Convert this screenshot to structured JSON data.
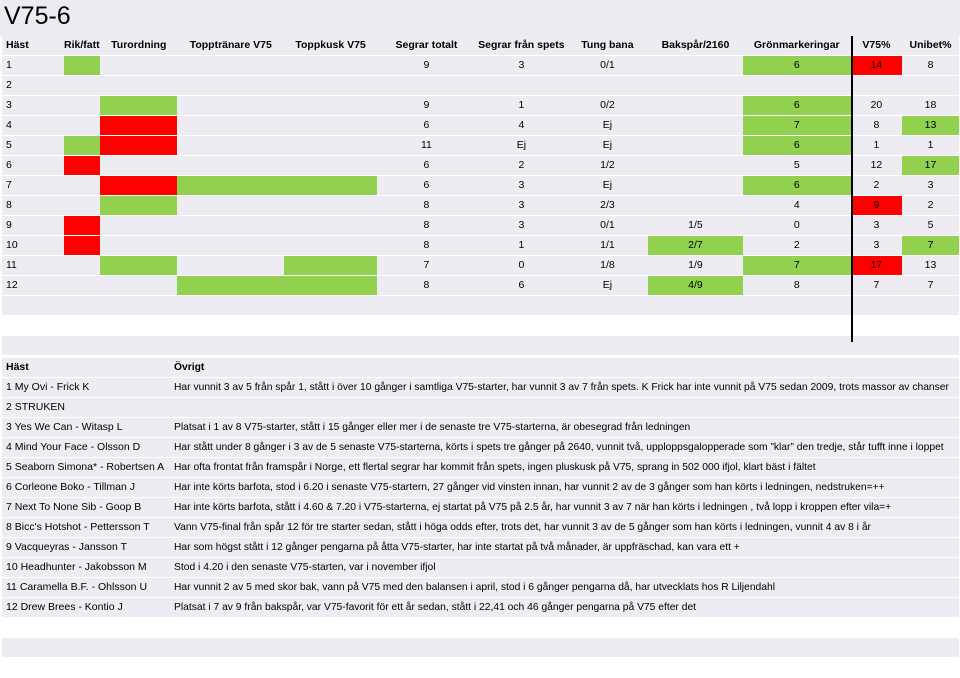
{
  "title": "V75-6",
  "columns": [
    "Häst",
    "Rik/fattig",
    "Turordning",
    "Topptränare V75",
    "Toppkusk V75",
    "Segrar totalt",
    "Segrar från spets",
    "Tung bana",
    "Bakspår/2160",
    "Grönmarkeringar",
    "V75%",
    "Unibet%"
  ],
  "rows": [
    {
      "cells": [
        "1",
        "",
        "",
        "",
        "",
        "9",
        "3",
        "0/1",
        "",
        "6",
        "14",
        "8"
      ],
      "fills": [
        "",
        "g",
        "",
        "",
        "",
        "",
        "",
        "",
        "",
        "g",
        "r",
        ""
      ]
    },
    {
      "cells": [
        "2",
        "",
        "",
        "",
        "",
        "",
        "",
        "",
        "",
        "",
        "",
        ""
      ],
      "fills": [
        "",
        "",
        "",
        "",
        "",
        "",
        "",
        "",
        "",
        "",
        "",
        ""
      ]
    },
    {
      "cells": [
        "3",
        "",
        "",
        "",
        "",
        "9",
        "1",
        "0/2",
        "",
        "6",
        "20",
        "18"
      ],
      "fills": [
        "",
        "",
        "g",
        "",
        "",
        "",
        "",
        "",
        "",
        "g",
        "",
        ""
      ]
    },
    {
      "cells": [
        "4",
        "",
        "",
        "",
        "",
        "6",
        "4",
        "Ej",
        "",
        "7",
        "8",
        "13"
      ],
      "fills": [
        "",
        "",
        "r",
        "",
        "",
        "",
        "",
        "",
        "",
        "g",
        "",
        "g"
      ]
    },
    {
      "cells": [
        "5",
        "",
        "",
        "",
        "",
        "11",
        "Ej",
        "Ej",
        "",
        "6",
        "1",
        "1"
      ],
      "fills": [
        "",
        "g",
        "r",
        "",
        "",
        "",
        "",
        "",
        "",
        "g",
        "",
        ""
      ]
    },
    {
      "cells": [
        "6",
        "",
        "",
        "",
        "",
        "6",
        "2",
        "1/2",
        "",
        "5",
        "12",
        "17"
      ],
      "fills": [
        "",
        "r",
        "",
        "",
        "",
        "",
        "",
        "",
        "",
        "",
        "",
        "g"
      ]
    },
    {
      "cells": [
        "7",
        "",
        "",
        "",
        "",
        "6",
        "3",
        "Ej",
        "",
        "6",
        "2",
        "3"
      ],
      "fills": [
        "",
        "",
        "r",
        "g",
        "g",
        "",
        "",
        "",
        "",
        "g",
        "",
        ""
      ]
    },
    {
      "cells": [
        "8",
        "",
        "",
        "",
        "",
        "8",
        "3",
        "2/3",
        "",
        "4",
        "9",
        "2"
      ],
      "fills": [
        "",
        "",
        "g",
        "",
        "",
        "",
        "",
        "",
        "",
        "",
        "r",
        ""
      ]
    },
    {
      "cells": [
        "9",
        "",
        "",
        "",
        "",
        "8",
        "3",
        "0/1",
        "1/5",
        "0",
        "3",
        "5"
      ],
      "fills": [
        "",
        "r",
        "",
        "",
        "",
        "",
        "",
        "",
        "",
        "",
        "",
        ""
      ]
    },
    {
      "cells": [
        "10",
        "",
        "",
        "",
        "",
        "8",
        "1",
        "1/1",
        "2/7",
        "2",
        "3",
        "7"
      ],
      "fills": [
        "",
        "r",
        "",
        "",
        "",
        "",
        "",
        "",
        "g",
        "",
        "",
        "g"
      ]
    },
    {
      "cells": [
        "11",
        "",
        "",
        "",
        "",
        "7",
        "0",
        "1/8",
        "1/9",
        "7",
        "17",
        "13"
      ],
      "fills": [
        "",
        "",
        "g",
        "",
        "g",
        "",
        "",
        "",
        "",
        "g",
        "r",
        ""
      ]
    },
    {
      "cells": [
        "12",
        "",
        "",
        "",
        "",
        "8",
        "6",
        "Ej",
        "4/9",
        "8",
        "7",
        "7"
      ],
      "fills": [
        "",
        "",
        "",
        "g",
        "g",
        "",
        "",
        "",
        "g",
        "",
        "",
        ""
      ]
    }
  ],
  "notes_header": {
    "name": "Häst",
    "note": "Övrigt"
  },
  "notes": [
    {
      "name": "1 My Ovi - Frick K",
      "note": "Har vunnit 3 av 5 från spår 1, stått i över 10 gånger i samtliga V75-starter, har vunnit 3 av 7 från spets. K Frick har inte vunnit på V75 sedan 2009, trots massor av chanser"
    },
    {
      "name": "2 STRUKEN",
      "note": ""
    },
    {
      "name": "3 Yes We Can - Witasp L",
      "note": "Platsat i 1 av 8 V75-starter, stått i 15 gånger eller mer i de senaste tre V75-starterna, är obesegrad från ledningen"
    },
    {
      "name": "4 Mind Your Face - Olsson D",
      "note": "Har stått under 8 gånger i 3 av de 5 senaste V75-starterna, körts i spets tre gånger på 2640, vunnit två, upploppsgalopperade som ”klar” den tredje, står tufft inne i loppet"
    },
    {
      "name": "5 Seaborn Simona* - Robertsen A",
      "note": "Har ofta frontat från framspår i Norge, ett flertal segrar har kommit från spets, ingen pluskusk på V75, sprang in 502 000 ifjol, klart bäst i fältet"
    },
    {
      "name": "6 Corleone Boko - Tillman J",
      "note": "Har inte körts barfota, stod i 6.20 i senaste V75-startern, 27 gånger vid vinsten innan, har vunnit 2 av de 3 gånger som han körts i ledningen, nedstruken=++"
    },
    {
      "name": "7 Next To None Sib - Goop B",
      "note": "Har inte körts barfota, stått i 4.60 & 7.20 i V75-starterna, ej startat på V75 på 2.5 år, har vunnit 3 av 7 när han körts i ledningen , två lopp i kroppen efter vila=+"
    },
    {
      "name": "8 Bicc's Hotshot - Pettersson T",
      "note": "Vann V75-final från spår 12 för tre starter sedan, stått i höga odds efter, trots det, har vunnit 3 av de 5 gånger som han körts i ledningen, vunnit 4 av 8 i år"
    },
    {
      "name": "9 Vacqueyras - Jansson T",
      "note": "Har som högst stått i 12 gånger pengarna på åtta V75-starter, har inte startat på två månader, är uppfräschad, kan vara ett +"
    },
    {
      "name": "10 Headhunter - Jakobsson M",
      "note": "Stod i 4.20 i den senaste V75-starten, var i november ifjol"
    },
    {
      "name": "11 Caramella B.F. - Ohlsson U",
      "note": "Har vunnit 2 av 5 med skor bak, vann på V75 med den balansen i april, stod i 6 gånger pengarna då, har utvecklats hos R Liljendahl"
    },
    {
      "name": "12 Drew Brees - Kontio J",
      "note": "Platsat i 7 av 9 från bakspår, var V75-favorit för ett år sedan, stått i 22,41 och 46 gånger pengarna på V75 efter det"
    }
  ]
}
